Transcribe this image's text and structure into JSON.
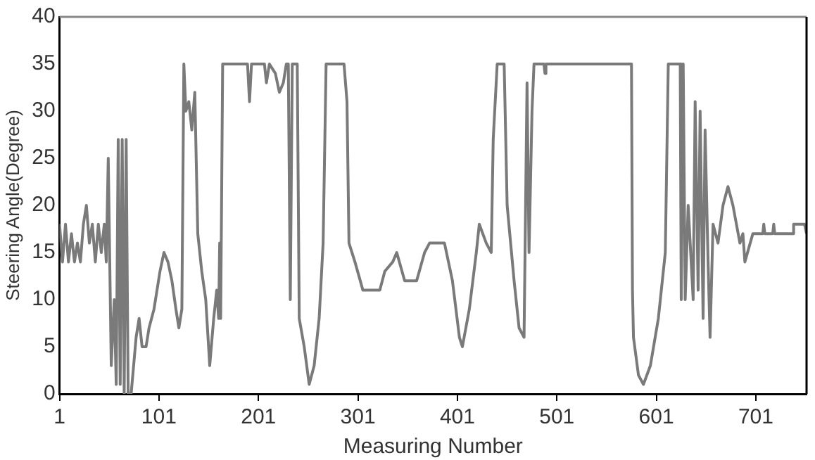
{
  "chart_data": {
    "type": "line",
    "xlabel": "Measuring Number",
    "ylabel": "Steering Angle(Degree)",
    "xlim": [
      1,
      752
    ],
    "xticks": [
      1,
      101,
      201,
      301,
      401,
      501,
      601,
      701
    ],
    "ylim": [
      0,
      40
    ],
    "yticks": [
      0,
      5,
      10,
      15,
      20,
      25,
      30,
      35,
      40
    ],
    "grid": false,
    "legend": false,
    "marker": "none",
    "line_style": "solid",
    "series": [
      {
        "color": "#7a7a7a",
        "x": [
          1,
          4,
          7,
          10,
          13,
          16,
          19,
          22,
          25,
          28,
          31,
          34,
          37,
          40,
          43,
          46,
          48,
          50,
          53,
          56,
          58,
          60,
          62,
          64,
          66,
          68,
          70,
          73,
          78,
          81,
          84,
          88,
          91,
          96,
          102,
          106,
          110,
          114,
          118,
          121,
          124,
          126,
          128,
          131,
          134,
          137,
          140,
          144,
          148,
          152,
          156,
          159,
          161,
          162,
          163,
          165,
          190,
          192,
          194,
          207,
          209,
          212,
          218,
          222,
          226,
          229,
          231,
          233,
          235,
          240,
          242,
          247,
          252,
          257,
          262,
          266,
          269,
          287,
          290,
          292,
          298,
          306,
          323,
          328,
          336,
          340,
          348,
          360,
          368,
          373,
          388,
          396,
          403,
          406,
          413,
          420,
          423,
          430,
          435,
          437,
          441,
          448,
          451,
          458,
          463,
          468,
          471,
          473,
          476,
          478,
          488,
          489,
          490,
          576,
          577,
          578,
          583,
          588,
          595,
          603,
          610,
          613,
          625,
          626,
          628,
          630,
          633,
          638,
          640,
          643,
          645,
          648,
          650,
          653,
          655,
          658,
          663,
          668,
          673,
          678,
          685,
          688,
          690,
          698,
          708,
          709,
          710,
          718,
          719,
          720,
          738,
          739,
          750,
          752
        ],
        "values": [
          18,
          14,
          18,
          14,
          17,
          14,
          16,
          14,
          18,
          20,
          16,
          18,
          14,
          18,
          15,
          18,
          14,
          25,
          3,
          10,
          1,
          27,
          1,
          27,
          0,
          27,
          0,
          0,
          6,
          8,
          5,
          5,
          7,
          9,
          13,
          15,
          14,
          12,
          9,
          7,
          9,
          35,
          30,
          31,
          28,
          32,
          17,
          13,
          10,
          3,
          8,
          11,
          8,
          16,
          8,
          35,
          35,
          31,
          35,
          35,
          33,
          35,
          34,
          32,
          33,
          35,
          35,
          10,
          35,
          35,
          8,
          5,
          1,
          3,
          8,
          16,
          35,
          35,
          31,
          16,
          14,
          11,
          11,
          13,
          14,
          15,
          12,
          12,
          15,
          16,
          16,
          12,
          6,
          5,
          9,
          15,
          18,
          16,
          15,
          27,
          35,
          35,
          20,
          12,
          7,
          6,
          33,
          15,
          30,
          35,
          35,
          34,
          35,
          35,
          11,
          6,
          2,
          1,
          3,
          8,
          15,
          35,
          35,
          10,
          35,
          10,
          20,
          10,
          31,
          11,
          30,
          8,
          28,
          14,
          6,
          18,
          16,
          20,
          22,
          20,
          16,
          17,
          14,
          17,
          17,
          18,
          17,
          17,
          18,
          17,
          17,
          18,
          18,
          17
        ]
      }
    ]
  }
}
